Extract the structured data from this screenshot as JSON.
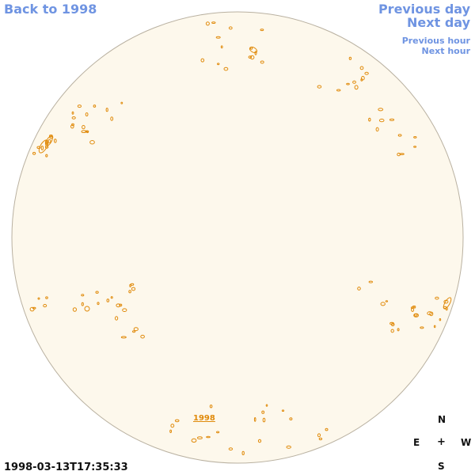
{
  "nav": {
    "back": "Back to 1998",
    "previous_day": "Previous day",
    "next_day": "Next day",
    "previous_hour": "Previous hour",
    "next_hour": "Next hour"
  },
  "timestamp": "1998-03-13T17:35:33",
  "compass": {
    "north": "N",
    "east": "E",
    "center": "+",
    "west": "W",
    "south": "S"
  },
  "disk_label": "1998",
  "colors": {
    "disk_fill": "#fdf8ec",
    "disk_edge": "#b9b1a1",
    "contour": "#e08a0a",
    "nav_link": "#6f94e2"
  }
}
